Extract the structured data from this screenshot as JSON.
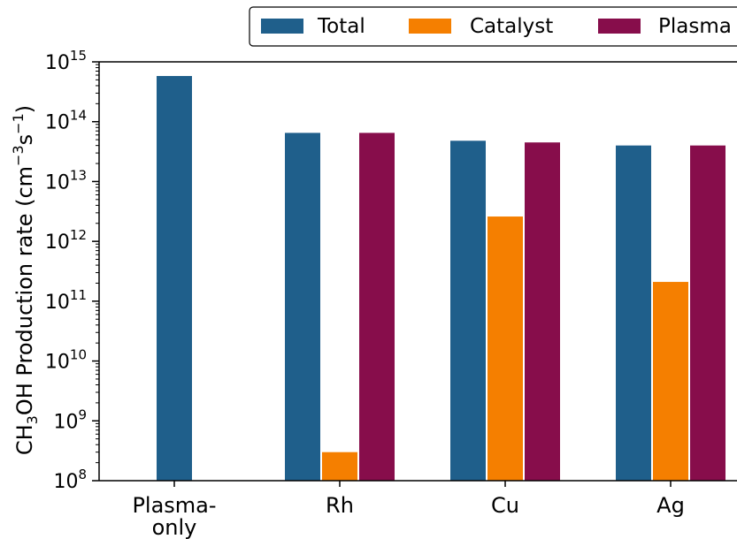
{
  "chart_data": {
    "type": "bar",
    "y_scale": "log",
    "ylim": [
      100000000.0,
      1000000000000000.0
    ],
    "ylabel": {
      "prefix": "CH",
      "sub": "3",
      "mid": "OH Production rate (cm",
      "sup1": "−3",
      "mid2": "s",
      "sup2": "−1",
      "suffix": ")"
    },
    "yticks": [
      {
        "value": 100000000.0,
        "base": "10",
        "exp": "8"
      },
      {
        "value": 1000000000.0,
        "base": "10",
        "exp": "9"
      },
      {
        "value": 10000000000.0,
        "base": "10",
        "exp": "10"
      },
      {
        "value": 100000000000.0,
        "base": "10",
        "exp": "11"
      },
      {
        "value": 1000000000000.0,
        "base": "10",
        "exp": "12"
      },
      {
        "value": 10000000000000.0,
        "base": "10",
        "exp": "13"
      },
      {
        "value": 100000000000000.0,
        "base": "10",
        "exp": "14"
      },
      {
        "value": 1000000000000000.0,
        "base": "10",
        "exp": "15"
      }
    ],
    "categories": [
      {
        "lines": [
          "Plasma-",
          "only"
        ]
      },
      {
        "lines": [
          "Rh"
        ]
      },
      {
        "lines": [
          "Cu"
        ]
      },
      {
        "lines": [
          "Ag"
        ]
      }
    ],
    "series": [
      {
        "name": "Total",
        "color": "#1f5f8b",
        "values": [
          580000000000000.0,
          65000000000000.0,
          48000000000000.0,
          40000000000000.0
        ]
      },
      {
        "name": "Catalyst",
        "color": "#f57f00",
        "values": [
          null,
          300000000.0,
          2600000000000.0,
          210000000000.0
        ]
      },
      {
        "name": "Plasma",
        "color": "#870d4b",
        "values": [
          null,
          65000000000000.0,
          45000000000000.0,
          40000000000000.0
        ]
      }
    ],
    "legend_placement": "top",
    "grid": false
  }
}
